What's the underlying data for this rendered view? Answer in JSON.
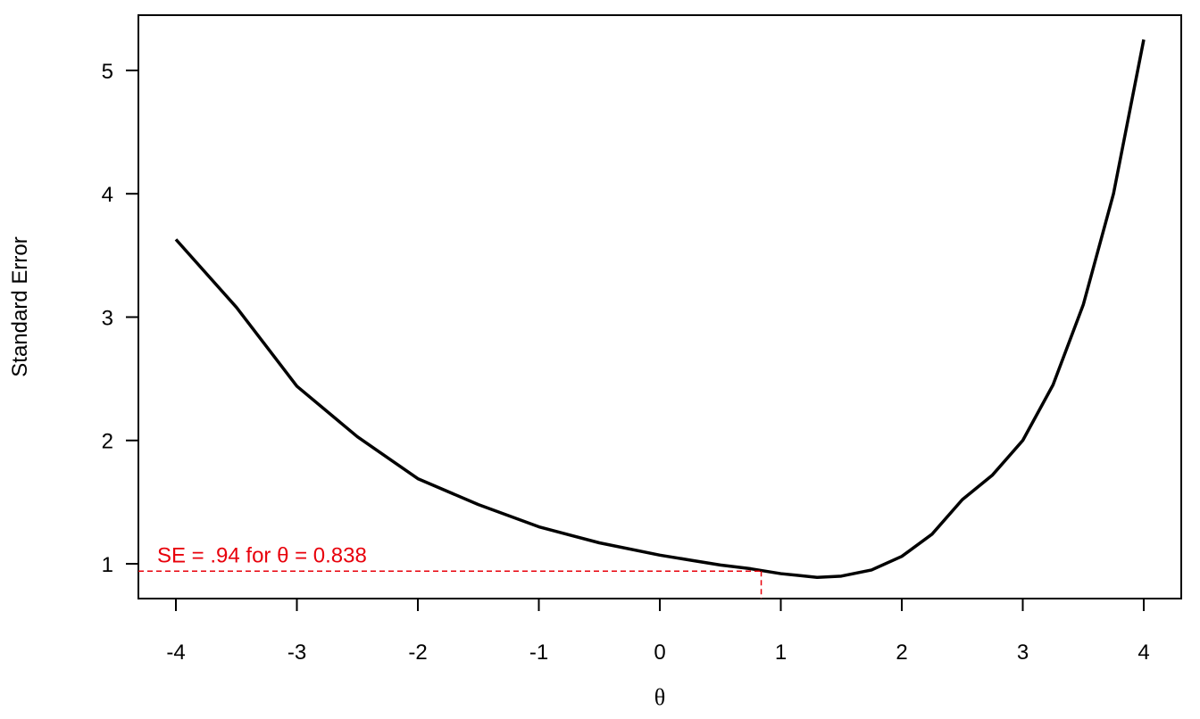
{
  "chart_data": {
    "type": "line",
    "xlabel": "θ",
    "ylabel": "Standard Error",
    "x": [
      -4,
      -3.5,
      -3,
      -2.5,
      -2,
      -1.5,
      -1,
      -0.5,
      0,
      0.25,
      0.5,
      0.75,
      1,
      1.3,
      1.5,
      1.75,
      2,
      2.25,
      2.5,
      2.75,
      3,
      3.25,
      3.5,
      3.75,
      4
    ],
    "values": [
      3.63,
      3.08,
      2.44,
      2.03,
      1.69,
      1.48,
      1.3,
      1.17,
      1.07,
      1.03,
      0.99,
      0.96,
      0.92,
      0.89,
      0.9,
      0.95,
      1.06,
      1.24,
      1.52,
      1.72,
      2.0,
      2.45,
      3.1,
      4.0,
      5.25
    ],
    "color": "#000000",
    "xlim": [
      -4.31,
      4.31
    ],
    "ylim": [
      0.718,
      5.448
    ],
    "xticks": [
      -4,
      -3,
      -2,
      -1,
      0,
      1,
      2,
      3,
      4
    ],
    "yticks": [
      1,
      2,
      3,
      4,
      5
    ],
    "reference": {
      "x": 0.838,
      "y": 0.94,
      "label": "SE = .94 for θ = 0.838",
      "color": "#e8000b"
    }
  }
}
